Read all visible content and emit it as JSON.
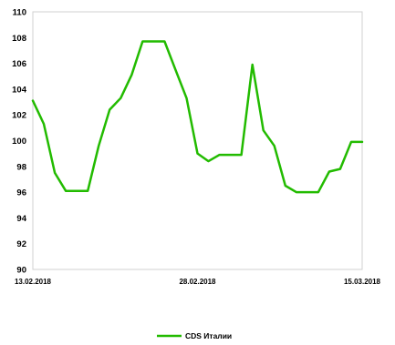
{
  "chart_data": {
    "type": "line",
    "title": "",
    "xlabel": "",
    "ylabel": "",
    "ylim": [
      90,
      110
    ],
    "yticks": [
      90,
      92,
      94,
      96,
      98,
      100,
      102,
      104,
      106,
      108,
      110
    ],
    "x_tick_labels": [
      "13.02.2018",
      "28.02.2018",
      "15.03.2018"
    ],
    "x_tick_positions": [
      0,
      15,
      30
    ],
    "x_count": 31,
    "grid": false,
    "legend_position": "bottom",
    "series": [
      {
        "name": "CDS Италии",
        "color": "#22bb00",
        "values": [
          103.1,
          101.3,
          97.5,
          96.1,
          96.1,
          96.1,
          99.6,
          102.4,
          103.3,
          105.1,
          107.7,
          107.7,
          107.7,
          105.5,
          103.3,
          99.0,
          98.4,
          98.9,
          98.9,
          98.9,
          105.9,
          100.8,
          99.6,
          96.5,
          96.0,
          96.0,
          96.0,
          97.6,
          97.8,
          99.9,
          99.9
        ]
      }
    ]
  }
}
